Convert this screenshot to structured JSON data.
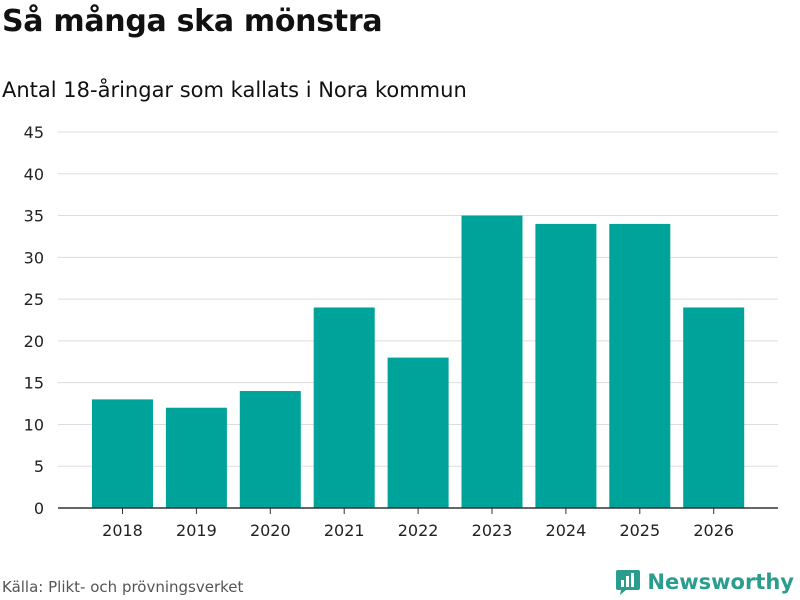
{
  "title": "Så många ska mönstra",
  "subtitle": "Antal 18-åringar som kallats i Nora kommun",
  "source": "Källa: Plikt- och prövningsverket",
  "brand": {
    "name": "Newsworthy",
    "color": "#2a9d8f"
  },
  "bar_color": "#00a39a",
  "chart_data": {
    "type": "bar",
    "title": "Så många ska mönstra",
    "subtitle": "Antal 18-åringar som kallats i Nora kommun",
    "xlabel": "",
    "ylabel": "",
    "categories": [
      "2018",
      "2019",
      "2020",
      "2021",
      "2022",
      "2023",
      "2024",
      "2025",
      "2026"
    ],
    "values": [
      13,
      12,
      14,
      24,
      18,
      35,
      34,
      34,
      24
    ],
    "ylim": [
      0,
      45
    ],
    "yticks": [
      0,
      5,
      10,
      15,
      20,
      25,
      30,
      35,
      40,
      45
    ],
    "grid": true,
    "legend": "none"
  }
}
